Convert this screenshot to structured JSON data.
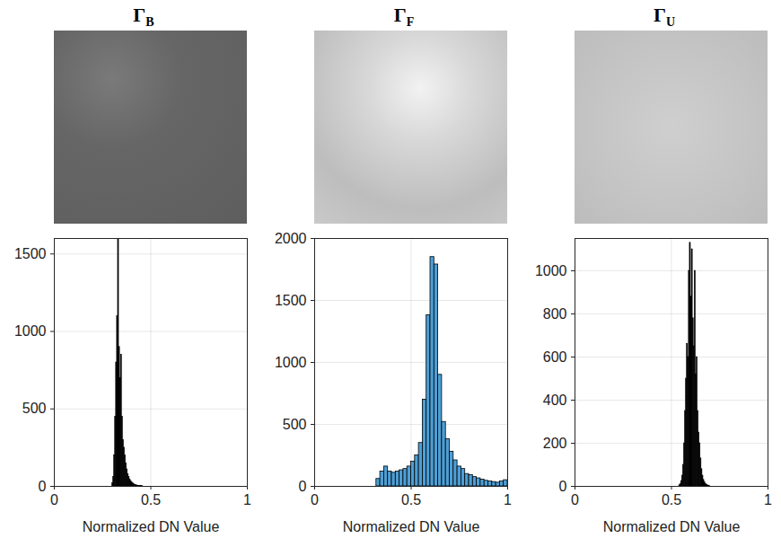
{
  "chart_data": [
    {
      "type": "histogram",
      "title": "ΓB",
      "x_label": "Normalized DN Value",
      "color": "#000000",
      "grid": true,
      "xlim": [
        0,
        1
      ],
      "xticks": [
        0,
        0.5,
        1
      ],
      "ylim": [
        0,
        1600
      ],
      "yticks": [
        0,
        500,
        1000,
        1500
      ],
      "bins": [
        0.3,
        0.305,
        0.31,
        0.315,
        0.32,
        0.325,
        0.33,
        0.335,
        0.34,
        0.345,
        0.35,
        0.355,
        0.36,
        0.365,
        0.37,
        0.375,
        0.38,
        0.385,
        0.39,
        0.395,
        0.4,
        0.405,
        0.41,
        0.415,
        0.42,
        0.425,
        0.43,
        0.435,
        0.44,
        0.445,
        0.45,
        0.455,
        0.46
      ],
      "counts": [
        20,
        60,
        200,
        450,
        800,
        1100,
        1600,
        900,
        700,
        850,
        450,
        300,
        250,
        200,
        150,
        110,
        80,
        60,
        45,
        35,
        25,
        20,
        15,
        10,
        8,
        6,
        5,
        4,
        3,
        2,
        2,
        1
      ]
    },
    {
      "type": "histogram",
      "title": "ΓF",
      "x_label": "Normalized DN Value",
      "color": "#4d9fd6",
      "grid": true,
      "xlim": [
        0,
        1
      ],
      "xticks": [
        0,
        0.5,
        1
      ],
      "ylim": [
        0,
        2000
      ],
      "yticks": [
        0,
        500,
        1000,
        1500,
        2000
      ],
      "bins": [
        0.32,
        0.34,
        0.36,
        0.38,
        0.4,
        0.42,
        0.44,
        0.46,
        0.48,
        0.5,
        0.52,
        0.54,
        0.56,
        0.58,
        0.6,
        0.62,
        0.64,
        0.66,
        0.68,
        0.7,
        0.72,
        0.74,
        0.76,
        0.78,
        0.8,
        0.82,
        0.84,
        0.86,
        0.88,
        0.9,
        0.92,
        0.94,
        0.96,
        0.98,
        1.0
      ],
      "counts": [
        60,
        120,
        160,
        120,
        110,
        120,
        130,
        140,
        160,
        200,
        250,
        350,
        700,
        1380,
        1850,
        1790,
        900,
        520,
        380,
        280,
        210,
        160,
        140,
        100,
        90,
        75,
        65,
        55,
        45,
        40,
        35,
        30,
        40,
        50
      ]
    },
    {
      "type": "histogram",
      "title": "ΓU",
      "x_label": "Normalized DN Value",
      "color": "#000000",
      "grid": true,
      "xlim": [
        0,
        1
      ],
      "xticks": [
        0,
        0.5,
        1
      ],
      "ylim": [
        0,
        1150
      ],
      "yticks": [
        0,
        200,
        400,
        600,
        800,
        1000
      ],
      "bins": [
        0.54,
        0.545,
        0.55,
        0.555,
        0.56,
        0.565,
        0.57,
        0.575,
        0.58,
        0.585,
        0.59,
        0.595,
        0.6,
        0.605,
        0.61,
        0.615,
        0.62,
        0.625,
        0.63,
        0.635,
        0.64,
        0.645,
        0.65,
        0.655,
        0.66,
        0.665,
        0.67,
        0.675,
        0.68,
        0.685,
        0.69,
        0.695,
        0.7
      ],
      "counts": [
        5,
        10,
        25,
        50,
        100,
        200,
        350,
        500,
        660,
        600,
        1000,
        1130,
        880,
        1100,
        780,
        650,
        1000,
        520,
        600,
        350,
        250,
        200,
        130,
        80,
        50,
        30,
        20,
        12,
        8,
        5,
        3,
        2
      ]
    }
  ]
}
